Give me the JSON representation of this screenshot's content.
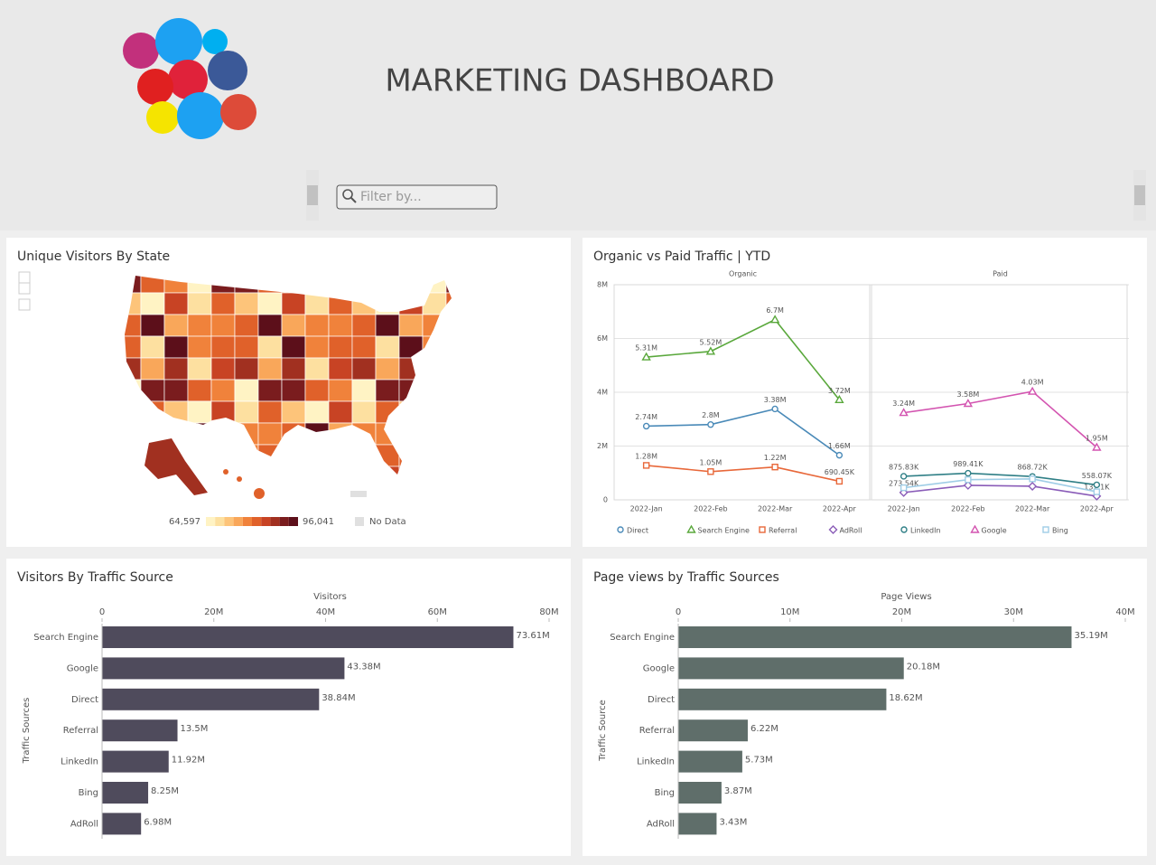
{
  "header": {
    "title": "MARKETING DASHBOARD",
    "filter_placeholder": "Filter by..."
  },
  "chart_data": [
    {
      "type": "map",
      "title": "Unique Visitors By State",
      "legend": {
        "min": {
          "value": 64597,
          "label": "64,597"
        },
        "max": {
          "value": 96041,
          "label": "96,041"
        },
        "no_data": "No Data",
        "colors": [
          "#fff3c4",
          "#fde0a0",
          "#fdc47a",
          "#f9a75a",
          "#f0823b",
          "#e0612a",
          "#c84324",
          "#a13020",
          "#7a1c1e",
          "#5c0f1a"
        ],
        "no_data_color": "#e0e0e0"
      }
    },
    {
      "type": "line",
      "title": "Organic vs Paid Traffic | YTD",
      "ylim": [
        0,
        8000000
      ],
      "yticks": [
        0,
        {
          "value": 2000000,
          "label": "2M"
        },
        {
          "value": 4000000,
          "label": "4M"
        },
        {
          "value": 6000000,
          "label": "6M"
        },
        {
          "value": 8000000,
          "label": "8M"
        }
      ],
      "grid": true,
      "panels": [
        {
          "name": "Organic",
          "categories": [
            "2022-Jan",
            "2022-Feb",
            "2022-Mar",
            "2022-Apr"
          ],
          "series": [
            {
              "name": "Direct",
              "color": "#4a8ab8",
              "marker": "circle",
              "values": [
                2740000,
                2800000,
                3380000,
                1660000
              ],
              "value_labels": [
                "2.74M",
                "2.8M",
                "3.38M",
                "1.66M"
              ]
            },
            {
              "name": "Search Engine",
              "color": "#5aa83c",
              "marker": "triangle",
              "values": [
                5310000,
                5520000,
                6700000,
                3720000
              ],
              "value_labels": [
                "5.31M",
                "5.52M",
                "6.7M",
                "3.72M"
              ]
            },
            {
              "name": "Referral",
              "color": "#e8683a",
              "marker": "square",
              "values": [
                1280000,
                1050000,
                1220000,
                690450
              ],
              "value_labels": [
                "1.28M",
                "1.05M",
                "1.22M",
                "690.45K"
              ]
            }
          ]
        },
        {
          "name": "Paid",
          "categories": [
            "2022-Jan",
            "2022-Feb",
            "2022-Mar",
            "2022-Apr"
          ],
          "series": [
            {
              "name": "AdRoll",
              "color": "#8a5cb8",
              "marker": "diamond",
              "values": [
                273540,
                540000,
                505000,
                137100
              ],
              "value_labels": [
                "273.54K",
                null,
                null,
                "137.1K"
              ]
            },
            {
              "name": "LinkedIn",
              "color": "#2f7f86",
              "marker": "circle",
              "values": [
                875830,
                989410,
                868720,
                558070
              ],
              "value_labels": [
                "875.83K",
                "989.41K",
                "868.72K",
                "558.07K"
              ]
            },
            {
              "name": "Google",
              "color": "#d354b0",
              "marker": "triangle",
              "values": [
                3240000,
                3580000,
                4030000,
                1950000
              ],
              "value_labels": [
                "3.24M",
                "3.58M",
                "4.03M",
                "1.95M"
              ]
            },
            {
              "name": "Bing",
              "color": "#9fcde6",
              "marker": "square",
              "values": [
                450000,
                750000,
                780000,
                300000
              ]
            }
          ]
        }
      ]
    },
    {
      "type": "hbar",
      "title": "Visitors By Traffic Source",
      "x_label": "Visitors",
      "y_label": "Traffic Sources",
      "color": "#4f4b5c",
      "categories": [
        "Search Engine",
        "Google",
        "Direct",
        "Referral",
        "LinkedIn",
        "Bing",
        "AdRoll"
      ],
      "values": [
        73610000,
        43380000,
        38840000,
        13500000,
        11920000,
        8250000,
        6980000
      ],
      "value_labels": [
        "73.61M",
        "43.38M",
        "38.84M",
        "13.5M",
        "11.92M",
        "8.25M",
        "6.98M"
      ],
      "xlim": [
        0,
        80000000
      ],
      "xticks": [
        0,
        {
          "value": 20000000,
          "label": "20M"
        },
        {
          "value": 40000000,
          "label": "40M"
        },
        {
          "value": 60000000,
          "label": "60M"
        },
        {
          "value": 80000000,
          "label": "80M"
        }
      ]
    },
    {
      "type": "hbar",
      "title": "Page views by Traffic Sources",
      "x_label": "Page Views",
      "y_label": "Traffic Source",
      "color": "#5f6e6a",
      "categories": [
        "Search Engine",
        "Google",
        "Direct",
        "Referral",
        "LinkedIn",
        "Bing",
        "AdRoll"
      ],
      "values": [
        35190000,
        20180000,
        18620000,
        6220000,
        5730000,
        3870000,
        3430000
      ],
      "value_labels": [
        "35.19M",
        "20.18M",
        "18.62M",
        "6.22M",
        "5.73M",
        "3.87M",
        "3.43M"
      ],
      "xlim": [
        0,
        40000000
      ],
      "xticks": [
        0,
        {
          "value": 10000000,
          "label": "10M"
        },
        {
          "value": 20000000,
          "label": "20M"
        },
        {
          "value": 30000000,
          "label": "30M"
        },
        {
          "value": 40000000,
          "label": "40M"
        }
      ]
    }
  ]
}
